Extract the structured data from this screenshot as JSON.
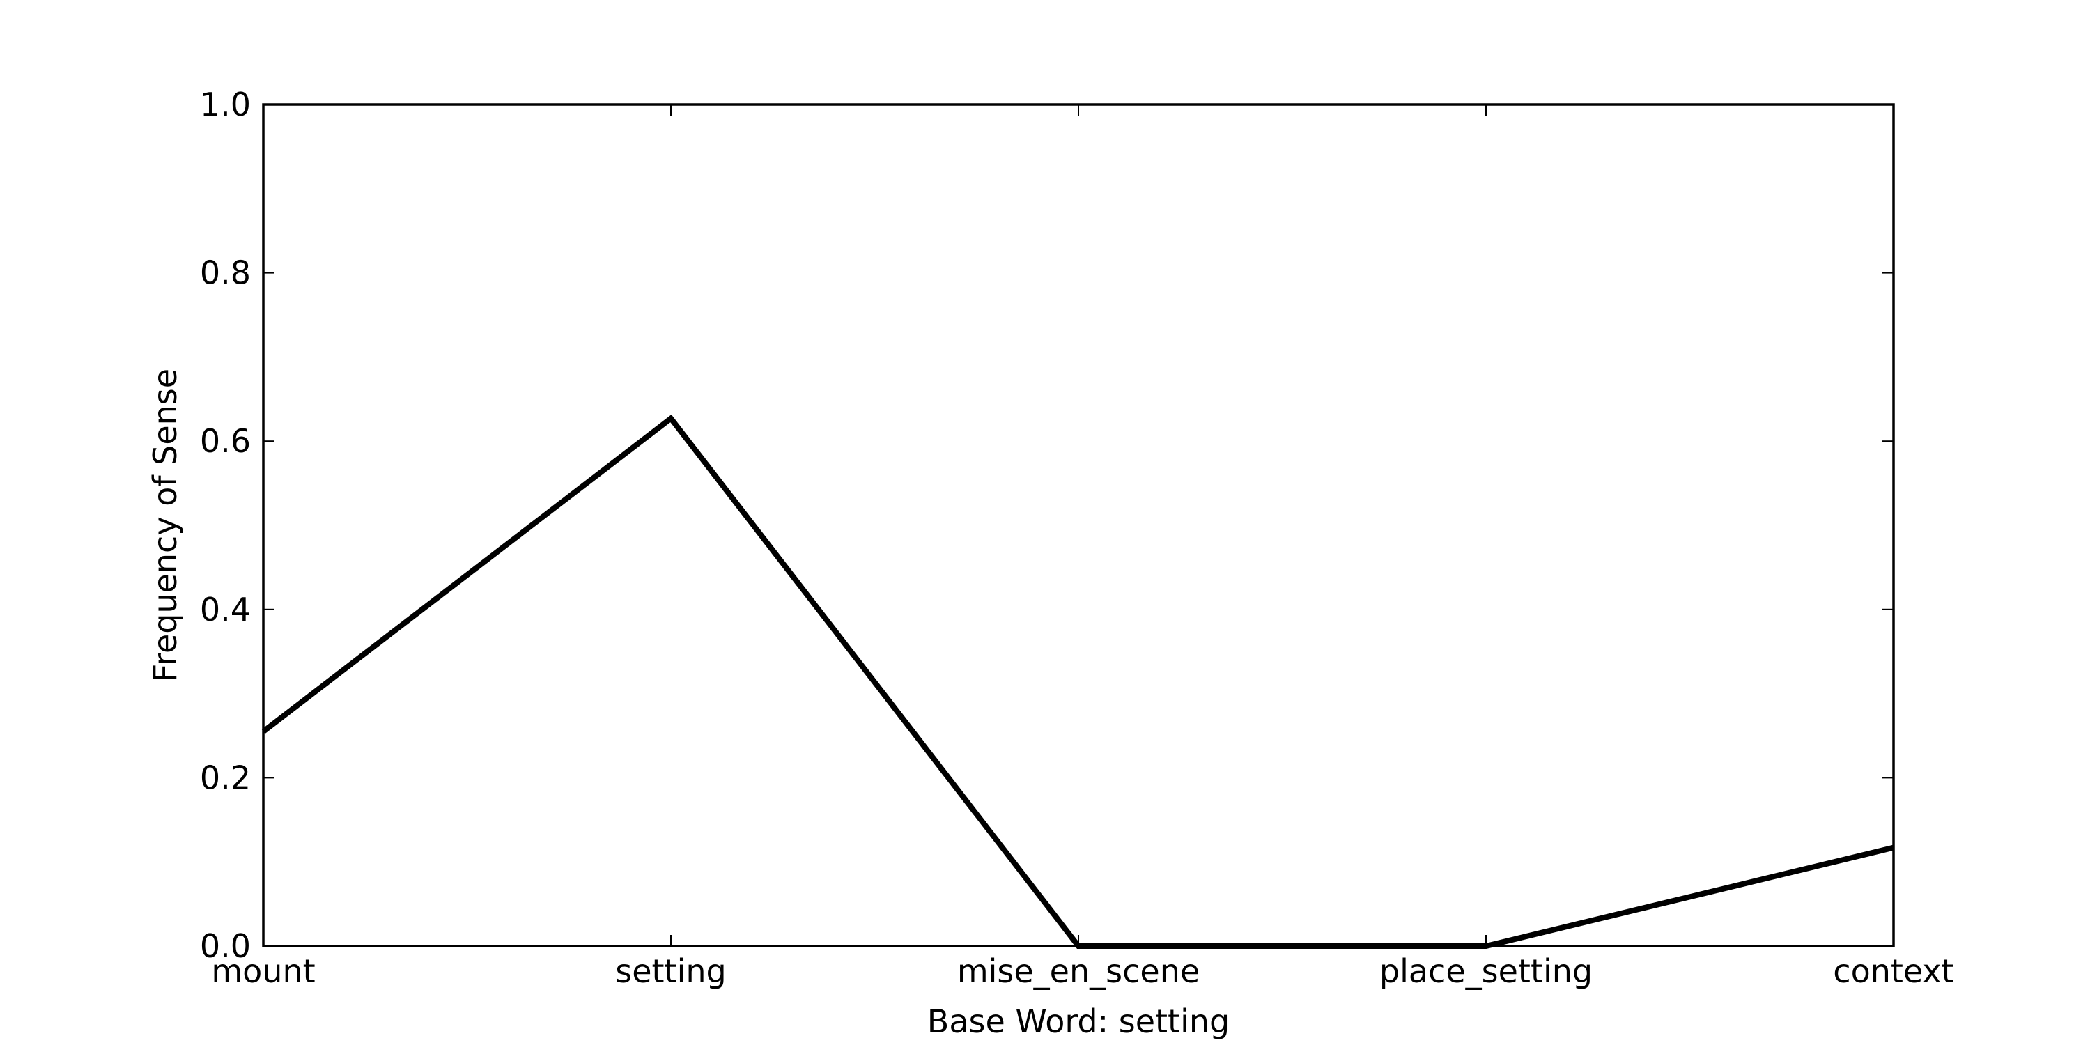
{
  "chart_data": {
    "type": "line",
    "title": "",
    "xlabel": "Base Word: setting",
    "ylabel": "Frequency of Sense",
    "categories": [
      "mount",
      "setting",
      "mise_en_scene",
      "place_setting",
      "context"
    ],
    "series": [
      {
        "values": [
          0.255,
          0.627,
          0.0,
          0.0,
          0.117
        ],
        "color": "#000000"
      }
    ],
    "ylim": [
      0,
      1.0
    ],
    "yticks": [
      "0.0",
      "0.2",
      "0.4",
      "0.6",
      "0.8",
      "1.0"
    ],
    "grid": false,
    "legend": "none"
  }
}
